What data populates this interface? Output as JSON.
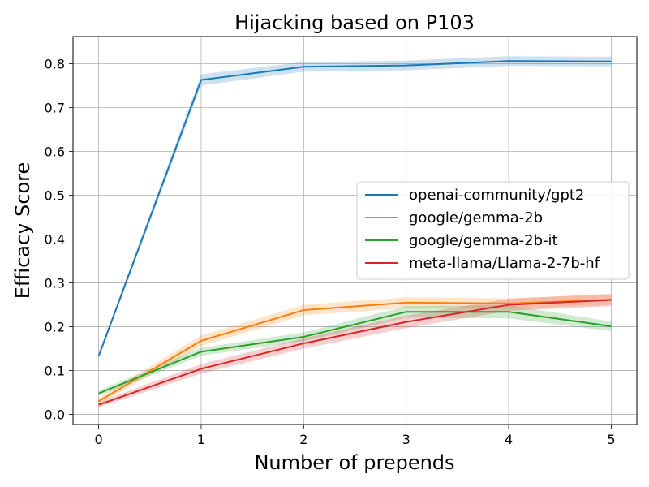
{
  "chart_data": {
    "type": "line",
    "title": "Hijacking based on P103",
    "xlabel": "Number of prepends",
    "ylabel": "Efficacy Score",
    "x": [
      0,
      1,
      2,
      3,
      4,
      5
    ],
    "xlim": [
      -0.25,
      5.25
    ],
    "ylim": [
      -0.023,
      0.862
    ],
    "xticks": [
      "0",
      "1",
      "2",
      "3",
      "4",
      "5"
    ],
    "yticks": [
      "0.0",
      "0.1",
      "0.2",
      "0.3",
      "0.4",
      "0.5",
      "0.6",
      "0.7",
      "0.8"
    ],
    "grid": true,
    "legend_position": "center-right",
    "series": [
      {
        "name": "openai-community/gpt2",
        "color": "#1f77b4",
        "values": [
          0.133,
          0.763,
          0.793,
          0.796,
          0.806,
          0.805
        ],
        "lower": [
          0.128,
          0.75,
          0.782,
          0.785,
          0.795,
          0.794
        ],
        "upper": [
          0.138,
          0.776,
          0.804,
          0.807,
          0.817,
          0.816
        ]
      },
      {
        "name": "google/gemma-2b",
        "color": "#ff7f0e",
        "values": [
          0.03,
          0.168,
          0.238,
          0.255,
          0.253,
          0.262
        ],
        "lower": [
          0.022,
          0.156,
          0.226,
          0.243,
          0.241,
          0.25
        ],
        "upper": [
          0.038,
          0.18,
          0.25,
          0.267,
          0.265,
          0.274
        ]
      },
      {
        "name": "google/gemma-2b-it",
        "color": "#2ca02c",
        "values": [
          0.048,
          0.143,
          0.177,
          0.234,
          0.234,
          0.201
        ],
        "lower": [
          0.042,
          0.134,
          0.167,
          0.221,
          0.219,
          0.19
        ],
        "upper": [
          0.054,
          0.152,
          0.187,
          0.247,
          0.249,
          0.212
        ]
      },
      {
        "name": "meta-llama/Llama-2-7b-hf",
        "color": "#d62728",
        "values": [
          0.022,
          0.104,
          0.162,
          0.211,
          0.25,
          0.261
        ],
        "lower": [
          0.016,
          0.093,
          0.15,
          0.197,
          0.236,
          0.247
        ],
        "upper": [
          0.028,
          0.115,
          0.174,
          0.225,
          0.264,
          0.275
        ]
      }
    ]
  }
}
